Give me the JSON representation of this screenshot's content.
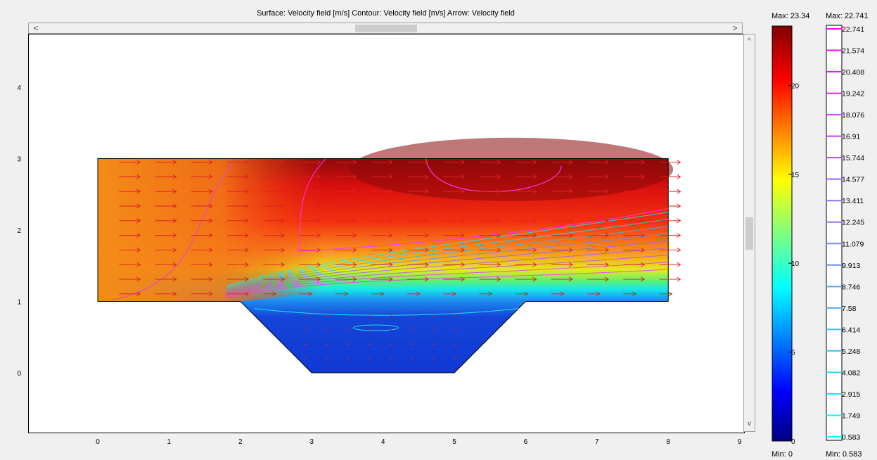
{
  "chart_data": {
    "type": "heatmap",
    "title": "Surface: Velocity field [m/s]   Contour: Velocity field [m/s]   Arrow: Velocity field",
    "xlabel": "",
    "ylabel": "",
    "xlim": [
      -0.97,
      9.1
    ],
    "ylim": [
      -0.84,
      4.75
    ],
    "x_ticks": [
      "0",
      "1",
      "2",
      "3",
      "4",
      "5",
      "6",
      "7",
      "8",
      "9"
    ],
    "y_ticks": [
      "0",
      "1",
      "2",
      "3",
      "4"
    ],
    "domain_polygon": [
      [
        0,
        1
      ],
      [
        2,
        1
      ],
      [
        3,
        0
      ],
      [
        5,
        0
      ],
      [
        6,
        1
      ],
      [
        8,
        1
      ],
      [
        8,
        3
      ],
      [
        0,
        3
      ]
    ],
    "colormap": "rainbow (blue-cyan-green-yellow-red-darkred)",
    "arrow_color": "#dd2020",
    "contour_colormap": "cyan-to-magenta",
    "surface_legend": {
      "max_label": "Max: 23.34",
      "min_label": "Min: 0",
      "min": 0,
      "max": 23.34,
      "ticks": [
        "0",
        "5",
        "10",
        "15",
        "20"
      ]
    },
    "contour_legend": {
      "max_label": "Max: 22.741",
      "min_label": "Min: 0.583",
      "levels": [
        "22.741",
        "21.574",
        "20.408",
        "19.242",
        "18.076",
        "16.91",
        "15.744",
        "14.577",
        "13.411",
        "12.245",
        "11.079",
        "9.913",
        "8.746",
        "7.58",
        "6.414",
        "5.248",
        "4.082",
        "2.915",
        "1.749",
        "0.583"
      ]
    }
  },
  "ui": {
    "hscroll_left": "<",
    "hscroll_right": ">",
    "vscroll_up": "^",
    "vscroll_down": "v"
  }
}
